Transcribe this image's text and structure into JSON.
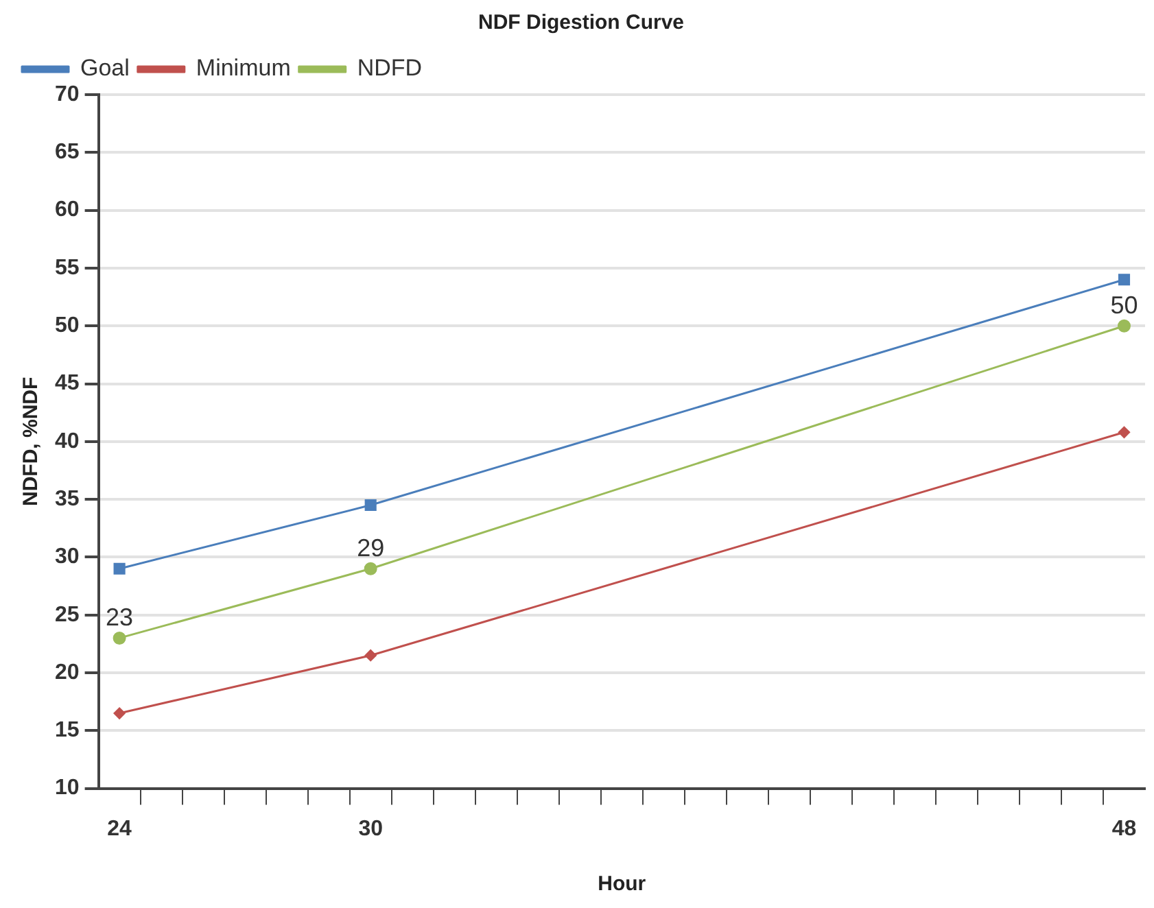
{
  "chart_data": {
    "type": "line",
    "title": "NDF Digestion Curve",
    "xlabel": "Hour",
    "ylabel": "NDFD, %NDF",
    "x": [
      24,
      30,
      48
    ],
    "series": [
      {
        "name": "Goal",
        "color": "#4a7ebb",
        "values": [
          29,
          34.5,
          54
        ],
        "marker": "square"
      },
      {
        "name": "Minimum",
        "color": "#c0504d",
        "values": [
          16.5,
          21.5,
          40.8
        ],
        "marker": "diamond"
      },
      {
        "name": "NDFD",
        "color": "#9bbb59",
        "values": [
          23,
          29,
          50
        ],
        "marker": "circle",
        "value_labels": [
          "23",
          "29",
          "50"
        ]
      }
    ],
    "xlim": [
      23.5,
      48.5
    ],
    "xticks": [
      24,
      30,
      48,
      {
        "value": 24.5,
        "label": null
      },
      {
        "value": 25.5,
        "label": null
      },
      {
        "value": 26.5,
        "label": null
      },
      {
        "value": 27.5,
        "label": null
      },
      {
        "value": 28.5,
        "label": null
      },
      {
        "value": 29.5,
        "label": null
      },
      {
        "value": 30.5,
        "label": null
      },
      {
        "value": 31.5,
        "label": null
      },
      {
        "value": 32.5,
        "label": null
      },
      {
        "value": 33.5,
        "label": null
      },
      {
        "value": 34.5,
        "label": null
      },
      {
        "value": 35.5,
        "label": null
      },
      {
        "value": 36.5,
        "label": null
      },
      {
        "value": 37.5,
        "label": null
      },
      {
        "value": 38.5,
        "label": null
      },
      {
        "value": 39.5,
        "label": null
      },
      {
        "value": 40.5,
        "label": null
      },
      {
        "value": 41.5,
        "label": null
      },
      {
        "value": 42.5,
        "label": null
      },
      {
        "value": 43.5,
        "label": null
      },
      {
        "value": 44.5,
        "label": null
      },
      {
        "value": 45.5,
        "label": null
      },
      {
        "value": 46.5,
        "label": null
      },
      {
        "value": 47.5,
        "label": null
      }
    ],
    "ylim": [
      10,
      70
    ],
    "yticks": [
      10,
      15,
      20,
      25,
      30,
      35,
      40,
      45,
      50,
      55,
      60,
      65,
      70
    ],
    "grid": "y",
    "legend": "top left",
    "line_style": "solid"
  }
}
